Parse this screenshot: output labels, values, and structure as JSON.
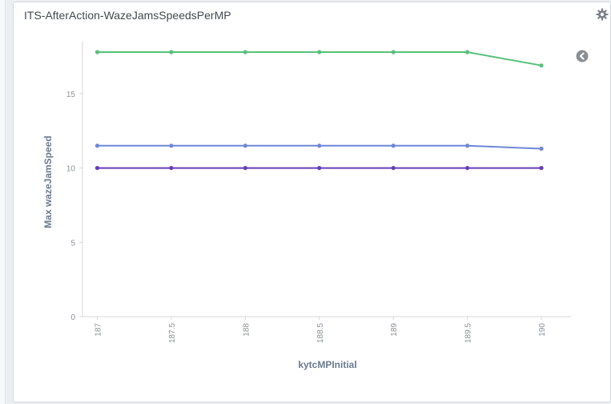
{
  "panel": {
    "title": "ITS-AfterAction-WazeJamsSpeedsPerMP",
    "settings_icon": "gear-icon",
    "legend_toggle_icon": "chevron-left-circle-icon"
  },
  "chart_data": {
    "type": "line",
    "xlabel": "kytcMPInitial",
    "ylabel": "Max wazeJamSpeed",
    "x": [
      187,
      187.5,
      188,
      188.5,
      189,
      189.5,
      190
    ],
    "x_tick_labels": [
      "187",
      "187.5",
      "188",
      "188.5",
      "189",
      "189.5",
      "190"
    ],
    "y_ticks": [
      0,
      5,
      10,
      15
    ],
    "y_tick_labels": [
      "0",
      "5",
      "10",
      "15"
    ],
    "ylim": [
      0,
      18.5
    ],
    "xlim": [
      186.9,
      190.2
    ],
    "grid": false,
    "series": [
      {
        "color": "#57c17b",
        "values": [
          17.8,
          17.8,
          17.8,
          17.8,
          17.8,
          17.8,
          16.9
        ]
      },
      {
        "color": "#6f87d8",
        "values": [
          11.5,
          11.5,
          11.5,
          11.5,
          11.5,
          11.5,
          11.3
        ]
      },
      {
        "color": "#663db8",
        "values": [
          10,
          10,
          10,
          10,
          10,
          10,
          10
        ]
      }
    ]
  }
}
